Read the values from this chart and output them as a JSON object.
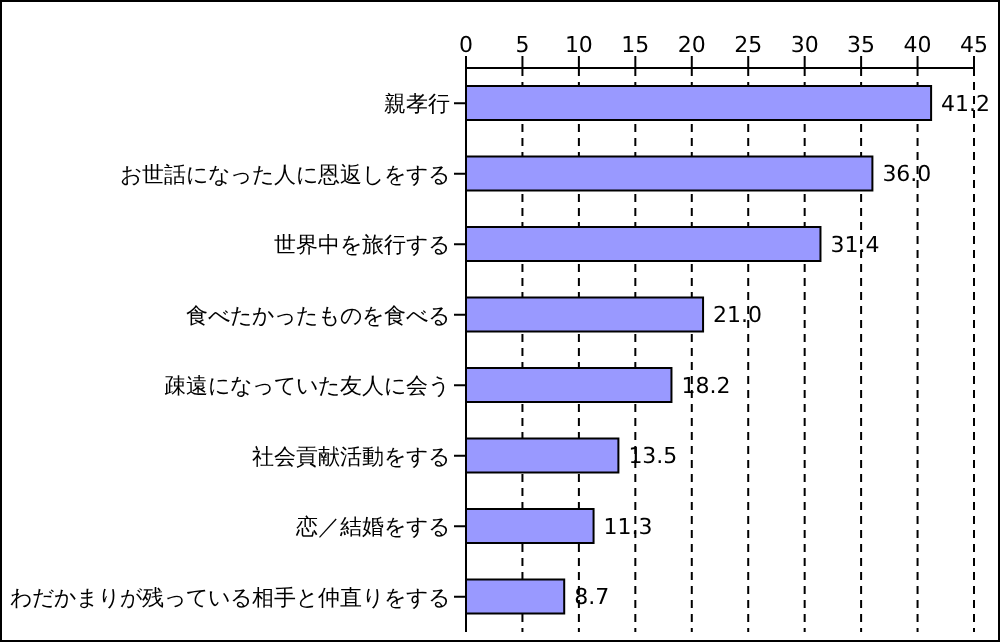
{
  "chart_data": {
    "type": "bar",
    "orientation": "horizontal",
    "categories": [
      "親孝行",
      "お世話になった人に恩返しをする",
      "世界中を旅行する",
      "食べたかったものを食べる",
      "疎遠になっていた友人に会う",
      "社会貢献活動をする",
      "恋／結婚をする",
      "わだかまりが残っている相手と仲直りをする"
    ],
    "values": [
      41.2,
      36.0,
      31.4,
      21.0,
      18.2,
      13.5,
      11.3,
      8.7
    ],
    "value_labels": [
      "41.2",
      "36.0",
      "31.4",
      "21.0",
      "18.2",
      "13.5",
      "11.3",
      "8.7"
    ],
    "color": "#9999ff",
    "xlim": [
      0,
      45
    ],
    "xticks": [
      0,
      5,
      10,
      15,
      20,
      25,
      30,
      35,
      40,
      45
    ],
    "grid": "x"
  }
}
